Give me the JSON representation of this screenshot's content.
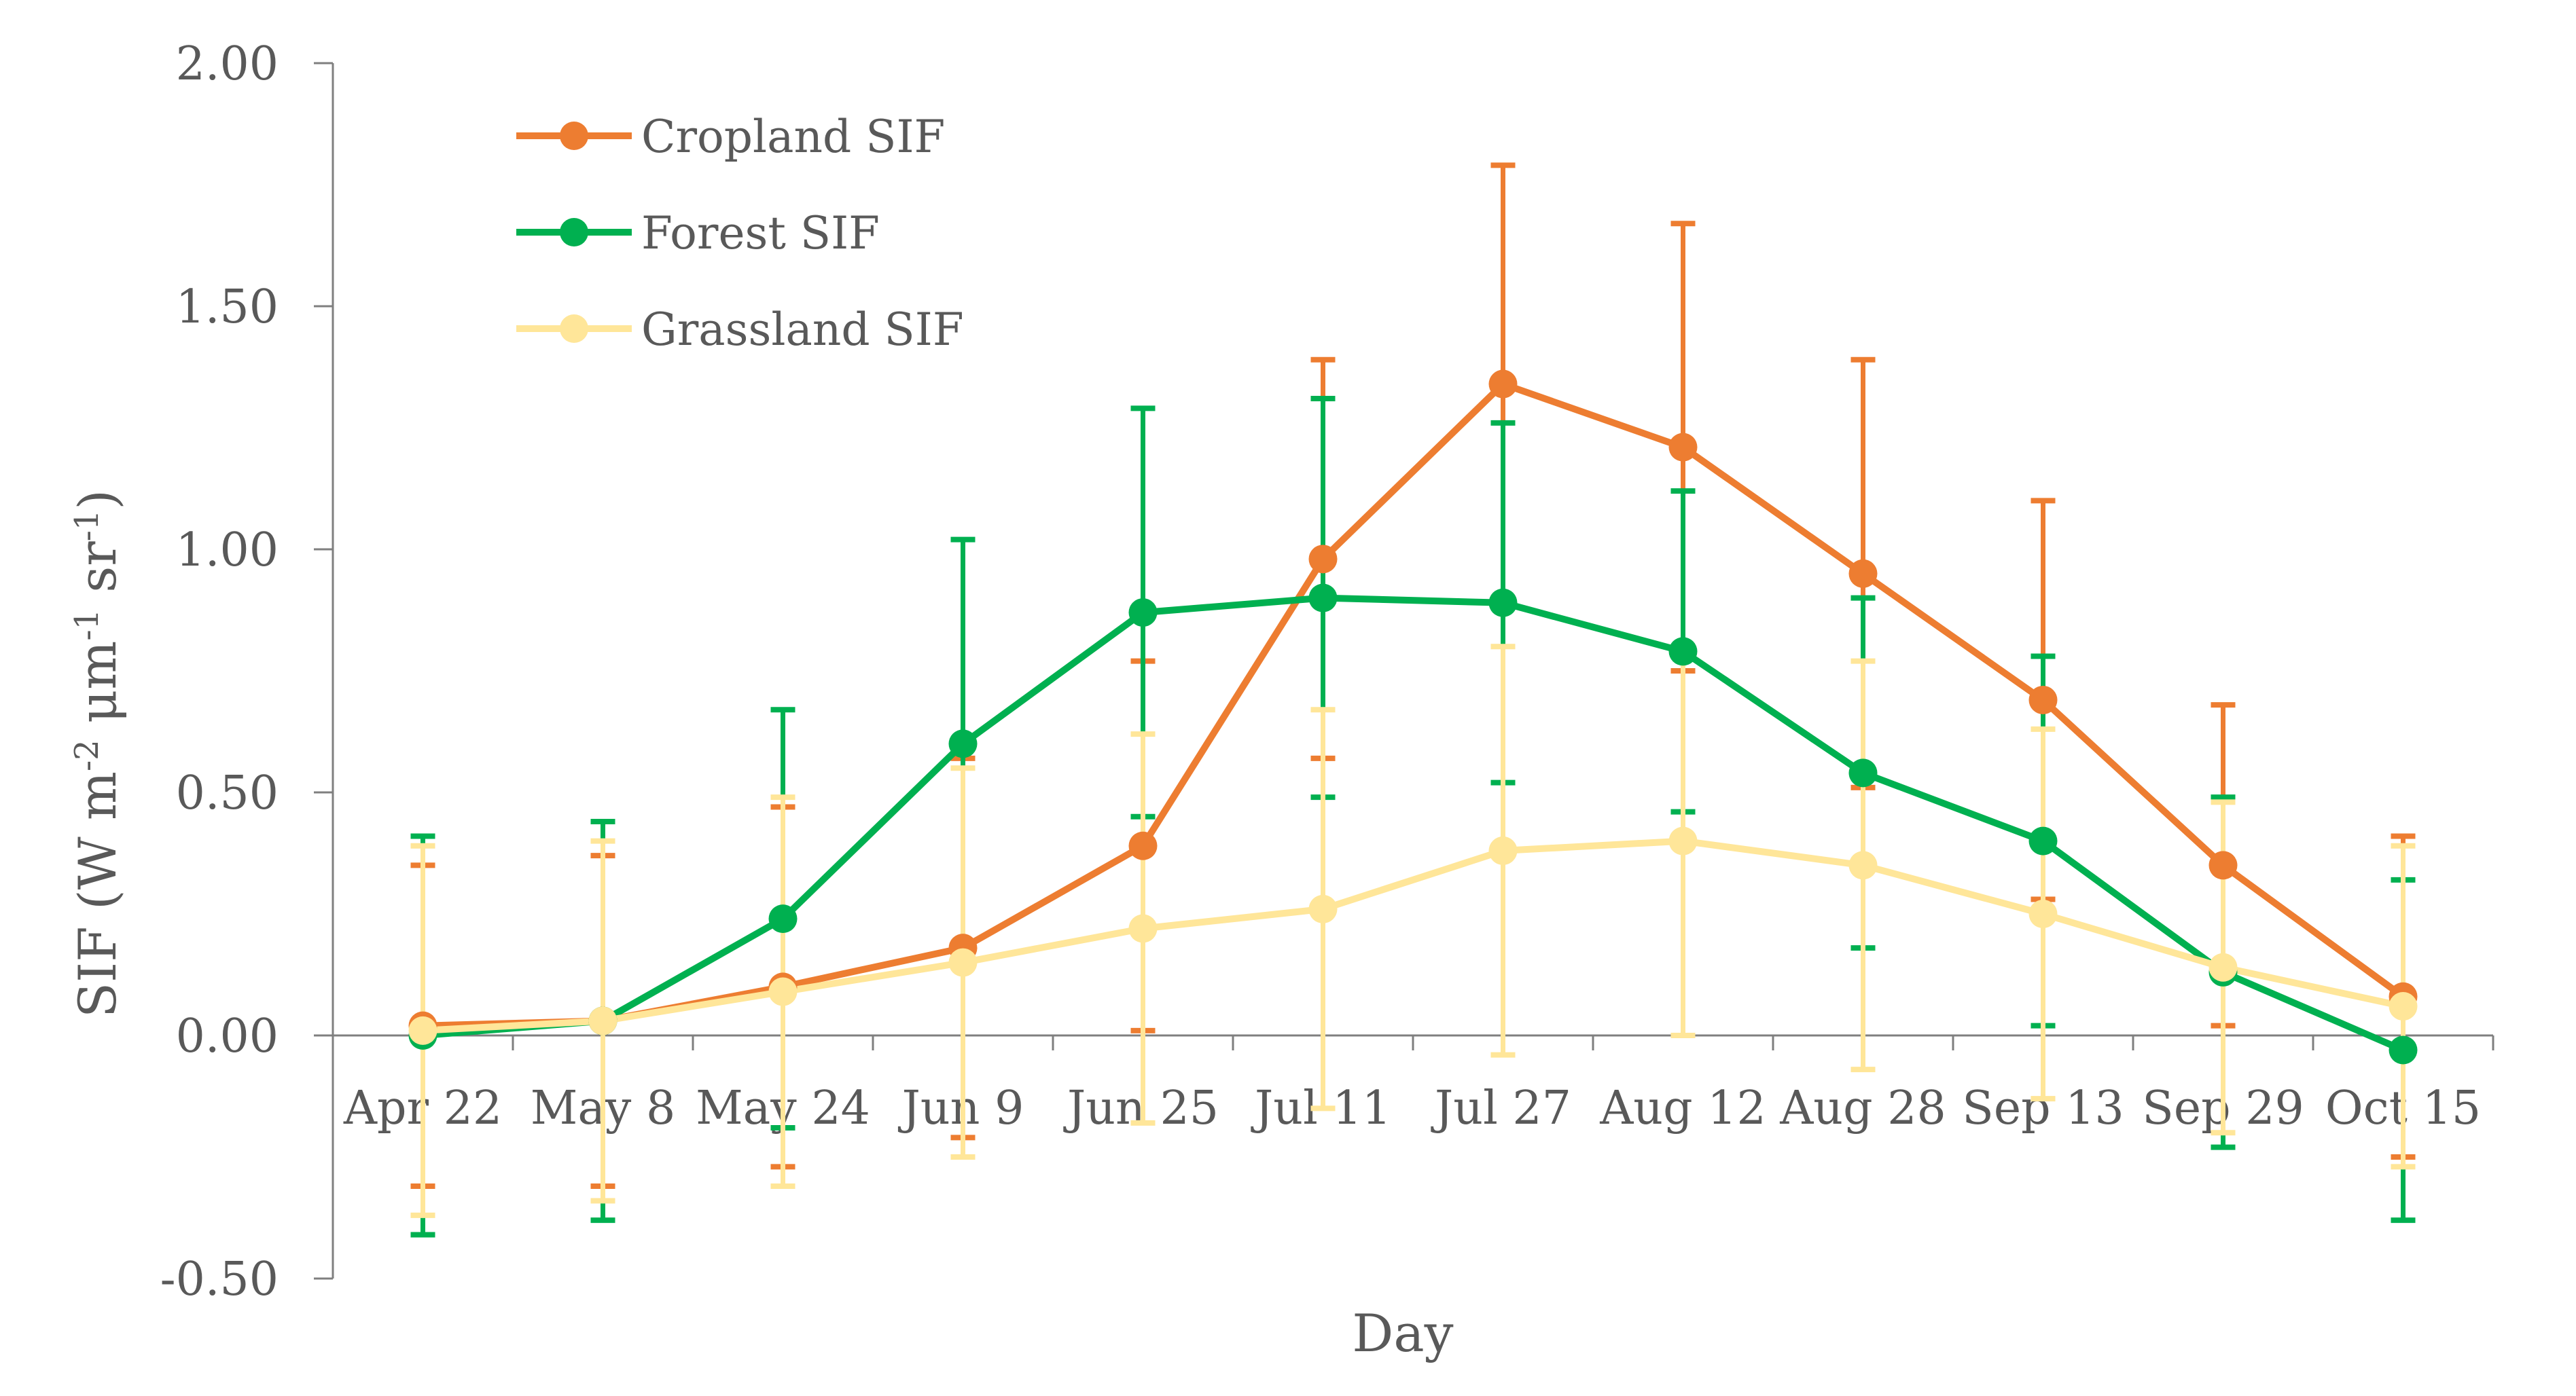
{
  "chart_data": {
    "type": "line",
    "title": "",
    "xlabel": "Day",
    "ylabel": {
      "prefix": "SIF (W m",
      "exp1": "-2",
      "mid1": " μm",
      "exp2": "-1",
      "mid2": " sr",
      "exp3": "-1",
      "suffix": ")"
    },
    "ylim": [
      -0.5,
      2.0
    ],
    "y_ticks": [
      "-0.50",
      "0.00",
      "0.50",
      "1.00",
      "1.50",
      "2.00"
    ],
    "y_tick_values": [
      -0.5,
      0.0,
      0.5,
      1.0,
      1.5,
      2.0
    ],
    "categories": [
      "Apr 22",
      "May 8",
      "May 24",
      "Jun 9",
      "Jun 25",
      "Jul 11",
      "Jul 27",
      "Aug 12",
      "Aug 28",
      "Sep 13",
      "Sep 29",
      "Oct 15"
    ],
    "legend_position": "top-left",
    "series": [
      {
        "name": "Cropland SIF",
        "color": "#ED7D31",
        "values": [
          0.02,
          0.03,
          0.1,
          0.18,
          0.39,
          0.98,
          1.34,
          1.21,
          0.95,
          0.69,
          0.35,
          0.08
        ],
        "error": [
          0.33,
          0.34,
          0.37,
          0.39,
          0.38,
          0.41,
          0.45,
          0.46,
          0.44,
          0.41,
          0.33,
          0.33
        ]
      },
      {
        "name": "Forest SIF",
        "color": "#00B050",
        "values": [
          0.0,
          0.03,
          0.24,
          0.6,
          0.87,
          0.9,
          0.89,
          0.79,
          0.54,
          0.4,
          0.13,
          -0.03
        ],
        "error": [
          0.41,
          0.41,
          0.43,
          0.42,
          0.42,
          0.41,
          0.37,
          0.33,
          0.36,
          0.38,
          0.36,
          0.35
        ]
      },
      {
        "name": "Grassland SIF",
        "color": "#FFE699",
        "values": [
          0.01,
          0.03,
          0.09,
          0.15,
          0.22,
          0.26,
          0.38,
          0.4,
          0.35,
          0.25,
          0.14,
          0.06
        ],
        "error": [
          0.38,
          0.37,
          0.4,
          0.4,
          0.4,
          0.41,
          0.42,
          0.4,
          0.42,
          0.38,
          0.34,
          0.33
        ]
      }
    ]
  }
}
